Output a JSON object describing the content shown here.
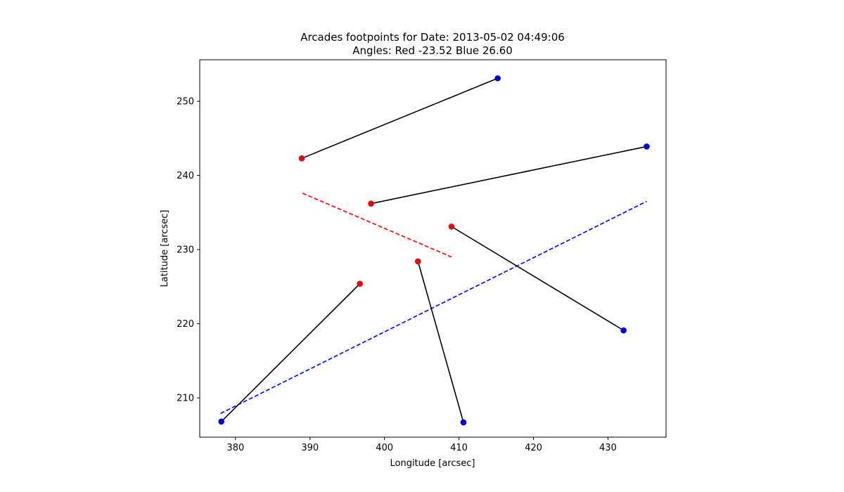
{
  "chart_data": {
    "type": "scatter",
    "title_line1": "Arcades footpoints for Date: 2013-05-02 04:49:06",
    "title_line2": "Angles: Red -23.52 Blue 26.60",
    "xlabel": "Longitude [arcsec]",
    "ylabel": "Latitude [arcsec]",
    "xlim": [
      375.2,
      437.8
    ],
    "ylim": [
      204.7,
      255.6
    ],
    "x_ticks": [
      380,
      390,
      400,
      410,
      420,
      430
    ],
    "y_ticks": [
      210,
      220,
      230,
      240,
      250
    ],
    "grid": false,
    "colors": {
      "red": "#ff0000",
      "blue": "#0000ff",
      "connector": "#000000",
      "red_marker": "#e8000b",
      "blue_marker": "#0000cc"
    },
    "arcades": [
      {
        "red": [
          388.9,
          242.3
        ],
        "blue": [
          415.2,
          253.1
        ]
      },
      {
        "red": [
          398.2,
          236.2
        ],
        "blue": [
          435.2,
          243.9
        ]
      },
      {
        "red": [
          409.0,
          233.1
        ],
        "blue": [
          432.1,
          219.1
        ]
      },
      {
        "red": [
          404.5,
          228.4
        ],
        "blue": [
          410.6,
          206.7
        ]
      },
      {
        "red": [
          396.7,
          225.4
        ],
        "blue": [
          378.1,
          206.8
        ]
      }
    ],
    "fit_lines": [
      {
        "color": "red",
        "style": "dashed",
        "points": [
          [
            389.0,
            237.6
          ],
          [
            409.0,
            229.0
          ]
        ]
      },
      {
        "color": "blue",
        "style": "dashed",
        "points": [
          [
            378.0,
            207.9
          ],
          [
            435.2,
            236.5
          ]
        ]
      }
    ]
  }
}
